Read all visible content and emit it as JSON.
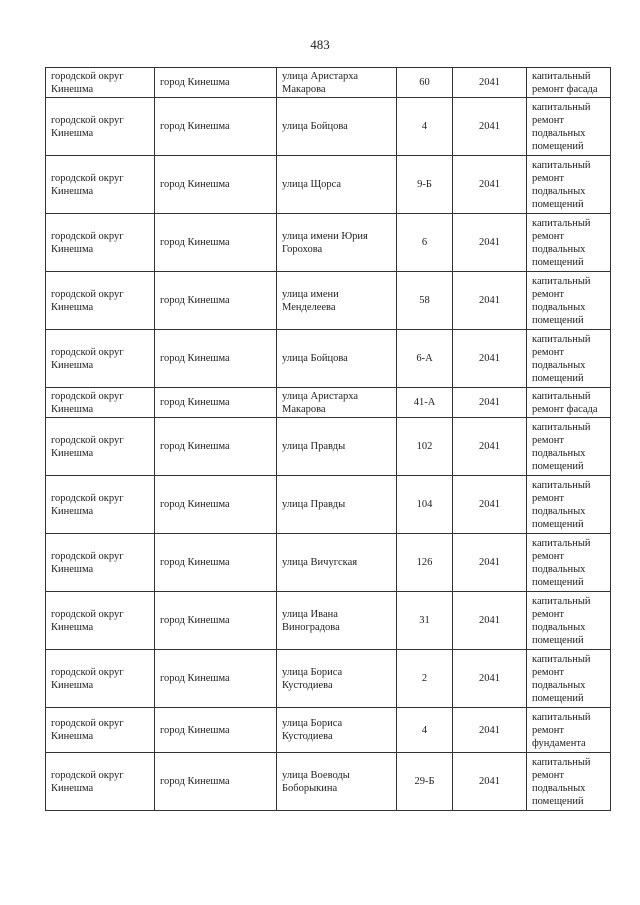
{
  "page_number": "483",
  "rows": [
    [
      "городской округ Кинешма",
      "город Кинешма",
      "улица Аристарха Макарова",
      "60",
      "2041",
      "капитальный ремонт фасада"
    ],
    [
      "городской округ Кинешма",
      "город Кинешма",
      "улица Бойцова",
      "4",
      "2041",
      "капитальный ремонт подвальных помещений"
    ],
    [
      "городской округ Кинешма",
      "город Кинешма",
      "улица Щорса",
      "9-Б",
      "2041",
      "капитальный ремонт подвальных помещений"
    ],
    [
      "городской округ Кинешма",
      "город Кинешма",
      "улица имени Юрия Горохова",
      "6",
      "2041",
      "капитальный ремонт подвальных помещений"
    ],
    [
      "городской округ Кинешма",
      "город Кинешма",
      "улица имени Менделеева",
      "58",
      "2041",
      "капитальный ремонт подвальных помещений"
    ],
    [
      "городской округ Кинешма",
      "город Кинешма",
      "улица Бойцова",
      "6-А",
      "2041",
      "капитальный ремонт подвальных помещений"
    ],
    [
      "городской округ Кинешма",
      "город Кинешма",
      "улица Аристарха Макарова",
      "41-А",
      "2041",
      "капитальный ремонт фасада"
    ],
    [
      "городской округ Кинешма",
      "город Кинешма",
      "улица Правды",
      "102",
      "2041",
      "капитальный ремонт подвальных помещений"
    ],
    [
      "городской округ Кинешма",
      "город Кинешма",
      "улица Правды",
      "104",
      "2041",
      "капитальный ремонт подвальных помещений"
    ],
    [
      "городской округ Кинешма",
      "город Кинешма",
      "улица Вичугская",
      "126",
      "2041",
      "капитальный ремонт подвальных помещений"
    ],
    [
      "городской округ Кинешма",
      "город Кинешма",
      "улица Ивана Виноградова",
      "31",
      "2041",
      "капитальный ремонт подвальных помещений"
    ],
    [
      "городской округ Кинешма",
      "город Кинешма",
      "улица Бориса Кустодиева",
      "2",
      "2041",
      "капитальный ремонт подвальных помещений"
    ],
    [
      "городской округ Кинешма",
      "город Кинешма",
      "улица Бориса Кустодиева",
      "4",
      "2041",
      "капитальный ремонт фундамента"
    ],
    [
      "городской округ Кинешма",
      "город Кинешма",
      "улица Воеводы Боборыкина",
      "29-Б",
      "2041",
      "капитальный ремонт подвальных помещений"
    ]
  ]
}
